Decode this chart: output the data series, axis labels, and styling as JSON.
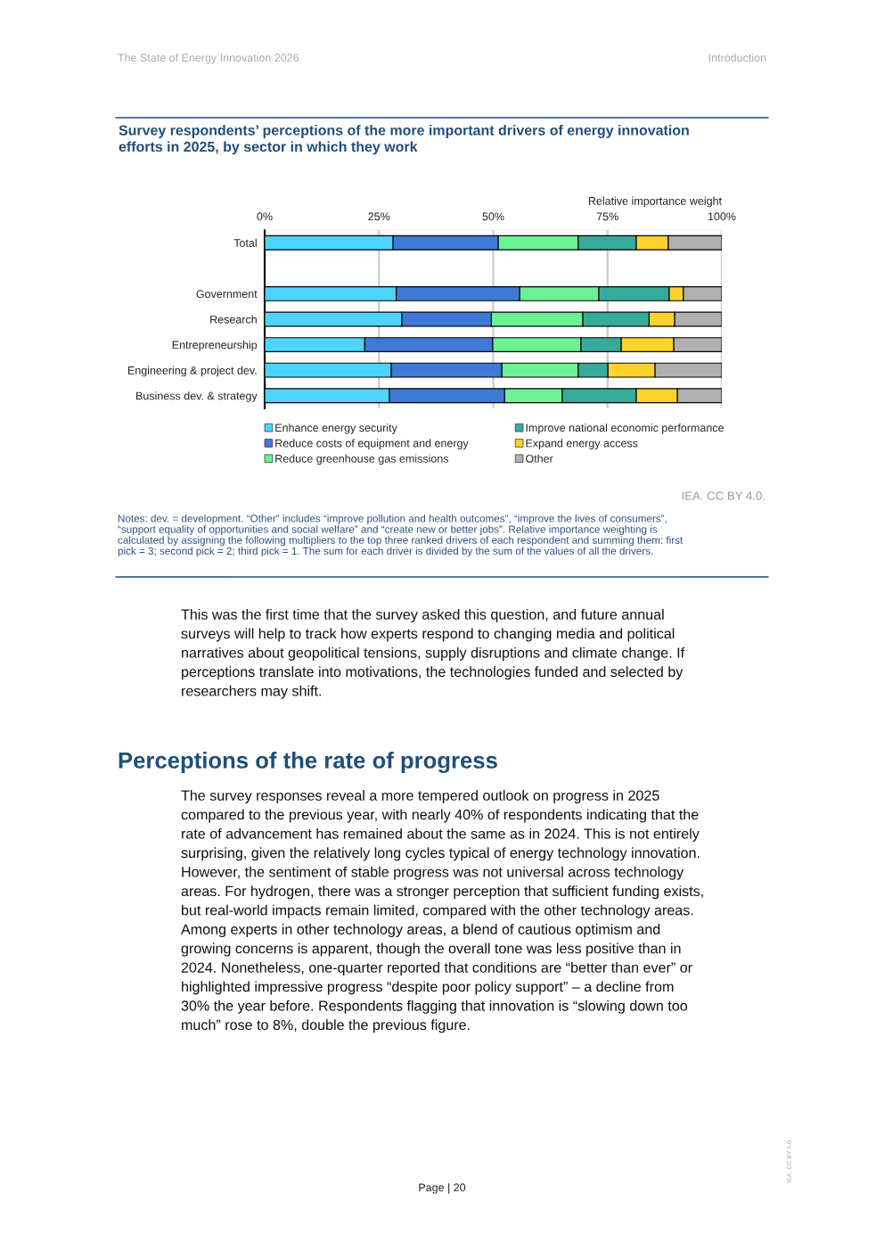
{
  "chart_data": {
    "type": "bar",
    "orientation": "horizontal",
    "stacked": true,
    "title": "Survey respondents’ perceptions of the more important drivers of energy innovation\nefforts in 2025, by sector in which they work",
    "xlabel": "Relative importance weight",
    "categories": [
      "Total",
      null,
      "Government",
      "Research",
      "Entrepreneurship",
      "Engineering & project dev.",
      "Business dev. & strategy"
    ],
    "series": [
      {
        "name": "Enhance energy security",
        "color": "#4dd4fc",
        "values": [
          28.1,
          null,
          28.8,
          30.0,
          21.9,
          27.7,
          27.3
        ]
      },
      {
        "name": "Reduce costs of equipment and energy",
        "color": "#3f79d6",
        "values": [
          23.0,
          null,
          27.0,
          19.6,
          28.0,
          24.2,
          25.2
        ]
      },
      {
        "name": "Reduce greenhouse gas emissions",
        "color": "#6bf294",
        "values": [
          17.5,
          null,
          17.3,
          20.0,
          19.3,
          16.7,
          12.6
        ]
      },
      {
        "name": "Improve national economic performance",
        "color": "#37ab9a",
        "values": [
          12.7,
          null,
          15.4,
          14.5,
          8.8,
          6.5,
          16.2
        ]
      },
      {
        "name": "Expand energy access",
        "color": "#fed22d",
        "values": [
          7.0,
          null,
          3.1,
          5.6,
          11.5,
          10.3,
          9.0
        ]
      },
      {
        "name": "Other",
        "color": "#b0b0b0",
        "values": [
          11.7,
          null,
          8.4,
          10.3,
          10.5,
          14.6,
          9.7
        ]
      }
    ],
    "xlim": [
      0,
      100
    ],
    "xticks": [
      {
        "value": 0,
        "label": "0%"
      },
      {
        "value": 25,
        "label": "25%"
      },
      {
        "value": 50,
        "label": "50%"
      },
      {
        "value": 75,
        "label": "75%"
      },
      {
        "value": 100,
        "label": "100%"
      }
    ],
    "grid": "x",
    "legend": "bottom",
    "annotations": [
      "The State of Energy Innovation 2026",
      "Introduction",
      "IEA. CC BY 4.0.",
      "Notes: dev. = development. “Other” includes “improve pollution and health outcomes”, “improve the lives of consumers”,\n“support equality of opportunities and social welfare” and “create new or better jobs”. Relative importance weighting is\ncalculated by assigning the following multipliers to the top three ranked drivers of each respondent and summing them: first\npick = 3; second pick = 2; third pick = 1. The sum for each driver is divided by the sum of the values of all the drivers.",
      "This was the first time that the survey asked this question, and future annual\nsurveys will help to track how experts respond to changing media and political\nnarratives about geopolitical tensions, supply disruptions and climate change. If\nperceptions translate into motivations, the technologies funded and selected by\nresearchers may shift.",
      "Perceptions of the rate of progress",
      "The survey responses reveal a more tempered outlook on progress in 2025\ncompared to the previous year, with nearly 40% of respondents indicating that the\nrate of advancement has remained about the same as in 2024. This is not entirely\nsurprising, given the relatively long cycles typical of energy technology innovation.\nHowever, the sentiment of stable progress was not universal across technology\nareas. For hydrogen, there was a stronger perception that sufficient funding exists,\nbut real-world impacts remain limited, compared with the other technology areas.\nAmong experts in other technology areas, a blend of cautious optimism and\ngrowing concerns is apparent, though the overall tone was less positive than in\n2024. Nonetheless, one-quarter reported that conditions are “better than ever” or\nhighlighted impressive progress “despite poor policy support” – a decline from\n30% the year before. Respondents flagging that innovation is “slowing down too\nmuch” rose to 8%, double the previous figure.",
      "Page | 20",
      "IEA. CC BY 4.0."
    ]
  }
}
